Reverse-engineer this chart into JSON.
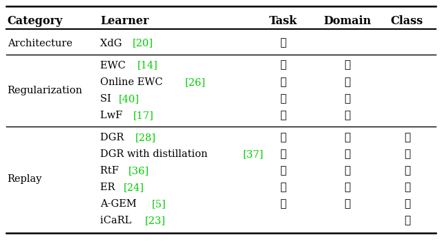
{
  "headers": [
    "Category",
    "Learner",
    "Task",
    "Domain",
    "Class"
  ],
  "rows": [
    {
      "learner_text": "XdG ",
      "learner_ref": "[20]",
      "task": true,
      "domain": false,
      "class_": false
    },
    {
      "learner_text": "EWC ",
      "learner_ref": "[14]",
      "task": true,
      "domain": true,
      "class_": false
    },
    {
      "learner_text": "Online EWC ",
      "learner_ref": "[26]",
      "task": true,
      "domain": true,
      "class_": false
    },
    {
      "learner_text": "SI ",
      "learner_ref": "[40]",
      "task": true,
      "domain": true,
      "class_": false
    },
    {
      "learner_text": "LwF ",
      "learner_ref": "[17]",
      "task": true,
      "domain": true,
      "class_": false
    },
    {
      "learner_text": "DGR ",
      "learner_ref": "[28]",
      "task": true,
      "domain": true,
      "class_": true
    },
    {
      "learner_text": "DGR with distillation ",
      "learner_ref": "[37]",
      "task": true,
      "domain": true,
      "class_": true
    },
    {
      "learner_text": "RtF ",
      "learner_ref": "[36]",
      "task": true,
      "domain": true,
      "class_": true
    },
    {
      "learner_text": "ER ",
      "learner_ref": "[24]",
      "task": true,
      "domain": true,
      "class_": true
    },
    {
      "learner_text": "A-GEM ",
      "learner_ref": "[5]",
      "task": true,
      "domain": true,
      "class_": true
    },
    {
      "learner_text": "iCaRL ",
      "learner_ref": "[23]",
      "task": false,
      "domain": false,
      "class_": true
    }
  ],
  "categories": [
    {
      "label": "Architecture",
      "start": 0,
      "end": 0
    },
    {
      "label": "Regularization",
      "start": 1,
      "end": 4
    },
    {
      "label": "Replay",
      "start": 5,
      "end": 10
    }
  ],
  "group_sep_after": [
    0,
    4
  ],
  "ref_color": "#00cc00",
  "bg_color": "#ffffff",
  "figsize": [
    6.4,
    3.5
  ],
  "dpi": 100
}
